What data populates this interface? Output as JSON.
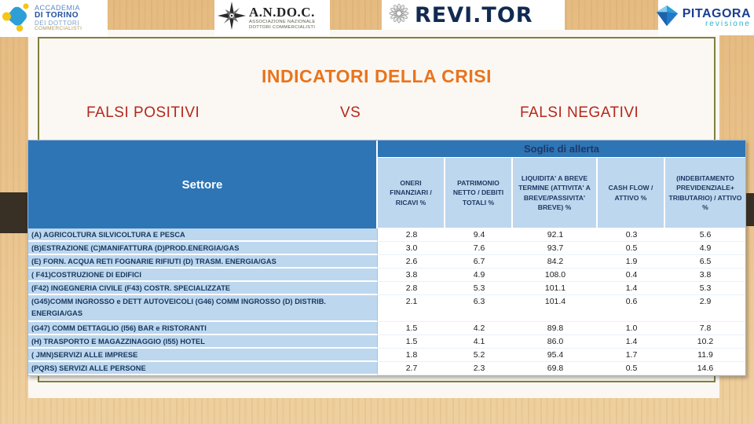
{
  "logos": {
    "accademia": {
      "line1": "ACCADEMIA",
      "line2": "DI TORINO",
      "line3": "DEI DOTTORI",
      "line4": "COMMERCIALISTI"
    },
    "andoc": {
      "title": "A.N.DO.C.",
      "subtitle_line1": "ASSOCIAZIONE NAZIONALE",
      "subtitle_line2": "DOTTORI COMMERCIALISTI"
    },
    "revitor": {
      "title": "REVI.TOR"
    },
    "pitagora": {
      "title": "PITAGORA",
      "subtitle": "revisione"
    }
  },
  "slide": {
    "title": "INDICATORI DELLA CRISI",
    "left_label": "FALSI POSITIVI",
    "vs_label": "VS",
    "right_label": "FALSI NEGATIVI"
  },
  "table": {
    "sector_header": "Settore",
    "group_header": "Soglie di allerta",
    "columns": [
      "ONERI FINANZIARI / RICAVI %",
      "PATRIMONIO NETTO / DEBITI TOTALI %",
      "LIQUIDITA' A BREVE TERMINE (ATTIVITA' A BREVE/PASSIVITA' BREVE) %",
      "CASH FLOW / ATTIVO %",
      "(INDEBITAMENTO PREVIDENZIALE+ TRIBUTARIO) / ATTIVO %"
    ],
    "rows": [
      {
        "label": "(A) AGRICOLTURA SILVICOLTURA E PESCA",
        "values": [
          "2.8",
          "9.4",
          "92.1",
          "0.3",
          "5.6"
        ],
        "tall": false
      },
      {
        "label": "(B)ESTRAZIONE (C)MANIFATTURA (D)PROD.ENERGIA/GAS",
        "values": [
          "3.0",
          "7.6",
          "93.7",
          "0.5",
          "4.9"
        ],
        "tall": false
      },
      {
        "label": "(E) FORN. ACQUA RETI FOGNARIE RIFIUTI (D) TRASM. ENERGIA/GAS",
        "values": [
          "2.6",
          "6.7",
          "84.2",
          "1.9",
          "6.5"
        ],
        "tall": false
      },
      {
        "label": "( F41)COSTRUZIONE DI EDIFICI",
        "values": [
          "3.8",
          "4.9",
          "108.0",
          "0.4",
          "3.8"
        ],
        "tall": false
      },
      {
        "label": "(F42) INGEGNERIA CIVILE  (F43) COSTR. SPECIALIZZATE",
        "values": [
          "2.8",
          "5.3",
          "101.1",
          "1.4",
          "5.3"
        ],
        "tall": false
      },
      {
        "label": "(G45)COMM INGROSSO e DETT AUTOVEICOLI (G46) COMM INGROSSO (D) DISTRIB. ENERGIA/GAS",
        "values": [
          "2.1",
          "6.3",
          "101.4",
          "0.6",
          "2.9"
        ],
        "tall": true
      },
      {
        "label": "(G47) COMM DETTAGLIO (I56) BAR e RISTORANTI",
        "values": [
          "1.5",
          "4.2",
          "89.8",
          "1.0",
          "7.8"
        ],
        "tall": false
      },
      {
        "label": "(H) TRASPORTO E MAGAZZINAGGIO (I55) HOTEL",
        "values": [
          "1.5",
          "4.1",
          "86.0",
          "1.4",
          "10.2"
        ],
        "tall": false
      },
      {
        "label": "( JMN)SERVIZI ALLE IMPRESE",
        "values": [
          "1.8",
          "5.2",
          "95.4",
          "1.7",
          "11.9"
        ],
        "tall": false
      },
      {
        "label": "(PQRS) SERVIZI ALLE PERSONE",
        "values": [
          "2.7",
          "2.3",
          "69.8",
          "0.5",
          "14.6"
        ],
        "tall": false
      }
    ]
  },
  "colors": {
    "accent_orange": "#e9741d",
    "label_red": "#b5271d",
    "table_header_blue": "#2e75b6",
    "table_light_blue": "#bdd7ee",
    "navy_text": "#1f3864",
    "olive_border": "#7f803c"
  }
}
